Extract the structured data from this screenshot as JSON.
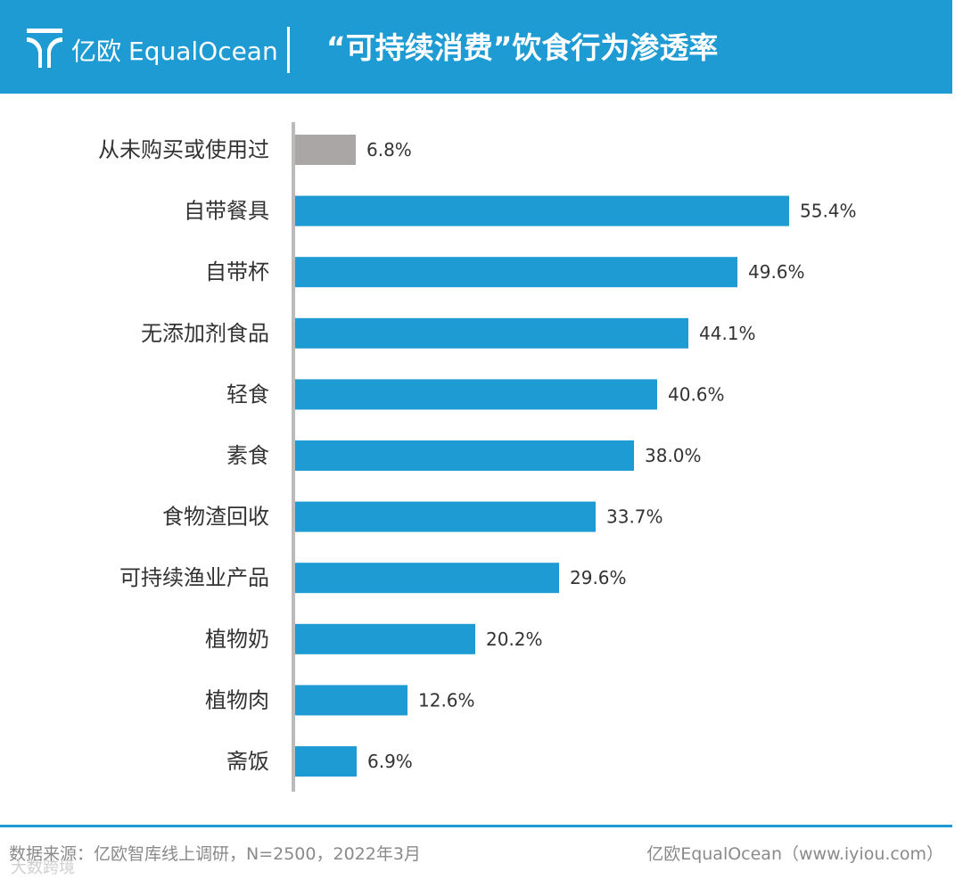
{
  "header": {
    "logo_cn": "亿欧",
    "logo_en": "EqualOcean",
    "title": "“可持续消费”饮食行为渗透率"
  },
  "colors": {
    "header_bg": "#1e9bd2",
    "bar_primary": "#1e9bd2",
    "bar_highlight": "#aaa6a6",
    "axis": "#bbbbbb"
  },
  "chart_data": {
    "type": "bar",
    "orientation": "horizontal",
    "title": "“可持续消费”饮食行为渗透率",
    "xlabel": "",
    "ylabel": "",
    "xlim": [
      0,
      60
    ],
    "grid": false,
    "categories": [
      "从未购买或使用过",
      "自带餐具",
      "自带杯",
      "无添加剂食品",
      "轻食",
      "素食",
      "食物渣回收",
      "可持续渔业产品",
      "植物奶",
      "植物肉",
      "斋饭"
    ],
    "values": [
      6.8,
      55.4,
      49.6,
      44.1,
      40.6,
      38.0,
      33.7,
      29.6,
      20.2,
      12.6,
      6.9
    ],
    "labels": [
      "6.8%",
      "55.4%",
      "49.6%",
      "44.1%",
      "40.6%",
      "38.0%",
      "33.7%",
      "29.6%",
      "20.2%",
      "12.6%",
      "6.9%"
    ],
    "bar_colors": [
      "#aaa6a6",
      "#1e9bd2",
      "#1e9bd2",
      "#1e9bd2",
      "#1e9bd2",
      "#1e9bd2",
      "#1e9bd2",
      "#1e9bd2",
      "#1e9bd2",
      "#1e9bd2",
      "#1e9bd2"
    ]
  },
  "footer": {
    "source": "数据来源：亿欧智库线上调研，N=2500，2022年3月",
    "credit": "亿欧EqualOcean（www.iyiou.com）"
  },
  "watermark": "大数跨境"
}
